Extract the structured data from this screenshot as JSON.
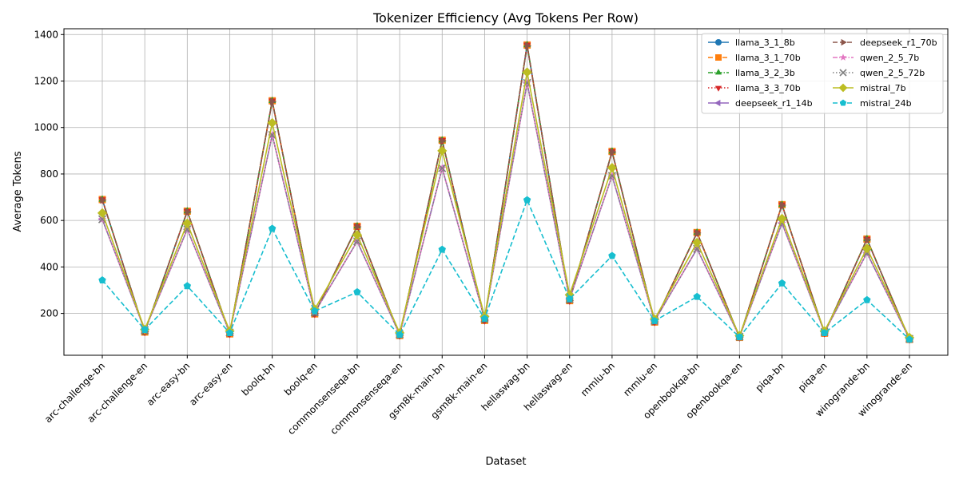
{
  "chart_data": {
    "type": "line",
    "title": "Tokenizer Efficiency (Avg Tokens Per Row)",
    "xlabel": "Dataset",
    "ylabel": "Average Tokens",
    "ylim": [
      20,
      1425
    ],
    "yticks": [
      200,
      400,
      600,
      800,
      1000,
      1200,
      1400
    ],
    "grid": true,
    "legend_position": "top-right",
    "categories": [
      "arc-challenge-bn",
      "arc-challenge-en",
      "arc-easy-bn",
      "arc-easy-en",
      "boolq-bn",
      "boolq-en",
      "commonsenseqa-bn",
      "commonsenseqa-en",
      "gsm8k-main-bn",
      "gsm8k-main-en",
      "hellaswag-bn",
      "hellaswag-en",
      "mmlu-bn",
      "mmlu-en",
      "openbookqa-bn",
      "openbookqa-en",
      "piqa-bn",
      "piqa-en",
      "winogrande-bn",
      "winogrande-en"
    ],
    "series": [
      {
        "name": "llama_3_1_8b",
        "color": "#1f77b4",
        "marker": "circle",
        "dash": "solid",
        "values": [
          690,
          120,
          640,
          112,
          1115,
          198,
          575,
          105,
          945,
          170,
          1355,
          255,
          897,
          163,
          548,
          97,
          668,
          115,
          520,
          88
        ]
      },
      {
        "name": "llama_3_1_70b",
        "color": "#ff7f0e",
        "marker": "square",
        "dash": "dashed",
        "values": [
          690,
          120,
          640,
          112,
          1115,
          198,
          575,
          105,
          945,
          170,
          1355,
          255,
          897,
          163,
          548,
          97,
          668,
          115,
          520,
          88
        ]
      },
      {
        "name": "llama_3_2_3b",
        "color": "#2ca02c",
        "marker": "triangle-up",
        "dash": "dashdot",
        "values": [
          690,
          120,
          640,
          112,
          1115,
          198,
          575,
          105,
          945,
          170,
          1355,
          255,
          897,
          163,
          548,
          97,
          668,
          115,
          520,
          88
        ]
      },
      {
        "name": "llama_3_3_70b",
        "color": "#d62728",
        "marker": "triangle-down",
        "dash": "dotted",
        "values": [
          690,
          120,
          640,
          112,
          1115,
          198,
          575,
          105,
          945,
          170,
          1355,
          255,
          897,
          163,
          548,
          97,
          668,
          115,
          520,
          88
        ]
      },
      {
        "name": "deepseek_r1_14b",
        "color": "#9467bd",
        "marker": "triangle-left",
        "dash": "solid",
        "values": [
          605,
          128,
          562,
          118,
          968,
          205,
          510,
          110,
          825,
          178,
          1192,
          262,
          792,
          168,
          478,
          100,
          588,
          120,
          460,
          91
        ]
      },
      {
        "name": "deepseek_r1_70b",
        "color": "#8c564b",
        "marker": "triangle-right",
        "dash": "dashed",
        "values": [
          688,
          121,
          638,
          113,
          1112,
          199,
          573,
          106,
          943,
          171,
          1352,
          256,
          895,
          164,
          546,
          98,
          666,
          116,
          518,
          89
        ]
      },
      {
        "name": "qwen_2_5_7b",
        "color": "#e377c2",
        "marker": "star",
        "dash": "dashdot",
        "values": [
          605,
          128,
          562,
          118,
          968,
          205,
          510,
          110,
          825,
          178,
          1192,
          262,
          792,
          168,
          478,
          100,
          588,
          120,
          460,
          91
        ]
      },
      {
        "name": "qwen_2_5_72b",
        "color": "#7f7f7f",
        "marker": "x",
        "dash": "dotted",
        "values": [
          605,
          128,
          562,
          118,
          968,
          205,
          510,
          110,
          825,
          178,
          1192,
          262,
          792,
          168,
          478,
          100,
          588,
          120,
          460,
          91
        ]
      },
      {
        "name": "mistral_7b",
        "color": "#bcbd22",
        "marker": "diamond",
        "dash": "solid",
        "values": [
          632,
          131,
          588,
          124,
          1020,
          218,
          538,
          116,
          900,
          186,
          1238,
          280,
          827,
          175,
          505,
          104,
          608,
          124,
          480,
          96
        ]
      },
      {
        "name": "mistral_24b",
        "color": "#17becf",
        "marker": "pentagon",
        "dash": "dashed",
        "values": [
          343,
          130,
          318,
          116,
          565,
          210,
          292,
          108,
          475,
          178,
          688,
          262,
          448,
          168,
          272,
          98,
          330,
          116,
          258,
          88
        ]
      }
    ]
  }
}
